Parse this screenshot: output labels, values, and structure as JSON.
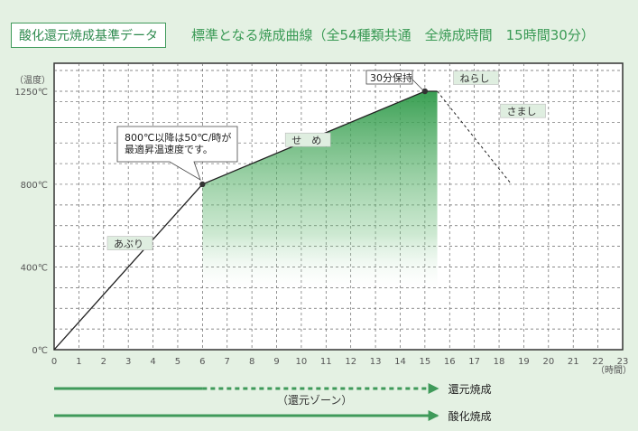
{
  "header": {
    "title": "酸化還元焼成基準データ",
    "subtitle": "標準となる焼成曲線（全54種類共通　全焼成時間　15時間30分）"
  },
  "chart_data": {
    "type": "line",
    "title": "標準となる焼成曲線（全54種類共通　全焼成時間　15時間30分）",
    "xlabel": "（時間）",
    "ylabel": "（温度）",
    "xlim": [
      0,
      23
    ],
    "ylim": [
      0,
      1250
    ],
    "x_ticks": [
      "0",
      "1",
      "2",
      "3",
      "4",
      "5",
      "6",
      "7",
      "8",
      "9",
      "10",
      "11",
      "12",
      "13",
      "14",
      "15",
      "16",
      "17",
      "18",
      "19",
      "20",
      "21",
      "22",
      "23"
    ],
    "y_ticks": [
      {
        "value": 0,
        "label": "0℃"
      },
      {
        "value": 400,
        "label": "400℃"
      },
      {
        "value": 800,
        "label": "800℃"
      },
      {
        "value": 1250,
        "label": "1250℃"
      }
    ],
    "grid": true,
    "series": [
      {
        "style": "solid",
        "points": [
          [
            0,
            0
          ],
          [
            6,
            800
          ],
          [
            15,
            1250
          ],
          [
            15.5,
            1250
          ]
        ]
      },
      {
        "style": "dashed",
        "points": [
          [
            15.5,
            1250
          ],
          [
            18.5,
            800
          ]
        ]
      }
    ],
    "markers": [
      [
        6,
        800
      ],
      [
        15,
        1250
      ]
    ],
    "phases": [
      {
        "label": "あぶり",
        "x": 2.3,
        "y": 500
      },
      {
        "label": "せ　め",
        "x": 9.5,
        "y": 1000
      },
      {
        "label": "ねらし",
        "x": 16.3,
        "y": 1300
      },
      {
        "label": "さまし",
        "x": 18.2,
        "y": 1140
      }
    ],
    "annotations": [
      {
        "lines": [
          "800℃以降は50℃/時が",
          "最適昇温速度です。"
        ],
        "target": [
          6,
          800
        ]
      },
      {
        "lines": [
          "30分保持"
        ],
        "target": [
          15,
          1250
        ]
      }
    ],
    "zones": [
      {
        "label": "還元焼成",
        "solid_to": 6,
        "dashed_to": 15.5
      },
      {
        "label": "酸化焼成",
        "solid_to": 15.5
      }
    ],
    "zone_note": "（還元ゾーン）",
    "colors": {
      "accent": "#3f9a5a",
      "fill": "#3a9a50",
      "line": "#222222"
    }
  }
}
